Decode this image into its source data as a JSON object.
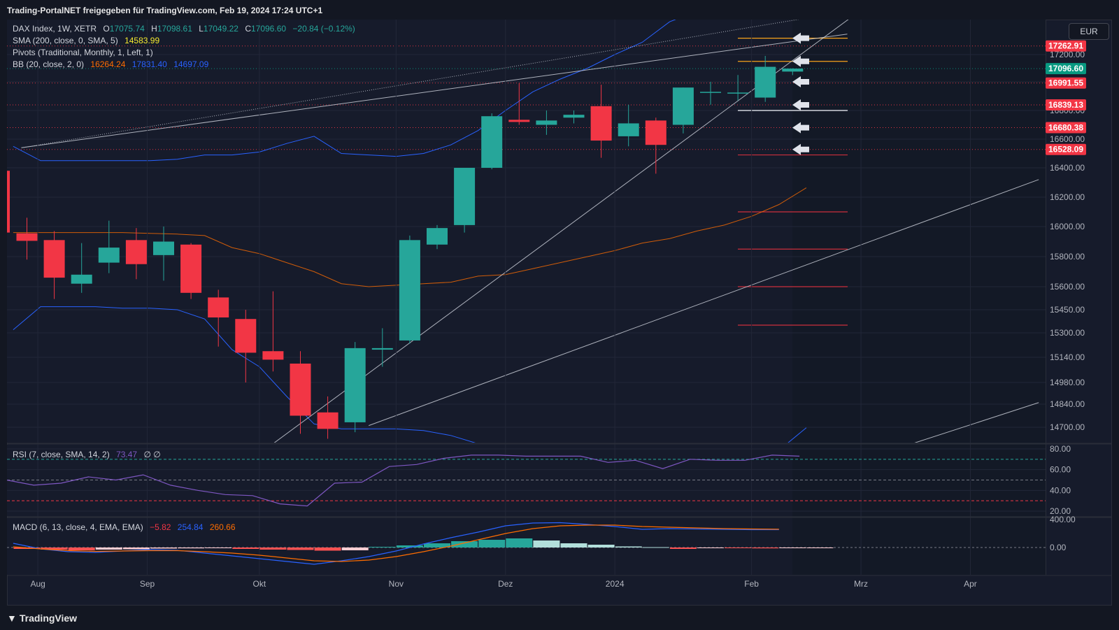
{
  "header": {
    "share_text": "Trading-PortalNET freigegeben für TradingView.com, Feb 19, 2024 17:24 UTC+1"
  },
  "footer": {
    "brand": "TradingView"
  },
  "currency": "EUR",
  "legend": {
    "instrument": "DAX Index, 1W, XETR",
    "ohlc": {
      "O": "17075.74",
      "H": "17098.61",
      "L": "17049.22",
      "C": "17096.60",
      "change": "−20.84 (−0.12%)"
    },
    "sma": {
      "label": "SMA (200, close, 0, SMA, 5)",
      "value": "14583.99"
    },
    "pivots": {
      "label": "Pivots (Traditional, Monthly, 1, Left, 1)"
    },
    "bb": {
      "label": "BB (20, close, 2, 0)",
      "basis": "16264.24",
      "upper": "17831.40",
      "lower": "14697.09"
    },
    "rsi": {
      "label": "RSI (7, close, SMA, 14, 2)",
      "value": "73.47",
      "extra": "∅ ∅"
    },
    "macd": {
      "label": "MACD (6, 13, close, 4, EMA, EMA)",
      "hist": "−5.82",
      "macd": "254.84",
      "signal": "260.66"
    }
  },
  "colors": {
    "up": "#26a69a",
    "down": "#f23645",
    "bb_band": "#2962ff",
    "bb_basis": "#ff6d00",
    "rsi_line": "#7e57c2",
    "macd_line": "#2962ff",
    "signal_line": "#ff6d00",
    "pivot_p": "#d1d4dc",
    "pivot_r": "#f7a21b",
    "pivot_s": "#cc2f3c"
  },
  "chart_data": [
    {
      "type": "candlestick",
      "title": "DAX Index, 1W, XETR",
      "x_ticks": [
        "Aug",
        "Sep",
        "Okt",
        "Nov",
        "Dez",
        "2024",
        "Feb",
        "Mrz",
        "Apr"
      ],
      "x_tick_weeks": [
        0.4,
        4.4,
        8.5,
        13.5,
        17.5,
        21.5,
        26.5,
        30.5,
        34.5
      ],
      "y_ticks": [
        17200,
        17000,
        16800,
        16600,
        16400,
        16200,
        16000,
        15800,
        15600,
        15450,
        15300,
        15140,
        14980,
        14840,
        14700
      ],
      "y_tick_labels": [
        "17200.00",
        "17000.00",
        "16800.00",
        "16600.00",
        "16400.00",
        "16200.00",
        "16000.00",
        "15800.00",
        "15600.00",
        "15450.00",
        "15300.00",
        "15140.00",
        "14980.00",
        "14840.00",
        "14700.00"
      ],
      "ohlc": [
        {
          "o": 15955,
          "h": 16060,
          "l": 15780,
          "c": 15905
        },
        {
          "o": 15910,
          "h": 15970,
          "l": 15520,
          "c": 15660
        },
        {
          "o": 15620,
          "h": 15890,
          "l": 15560,
          "c": 15680
        },
        {
          "o": 15760,
          "h": 16040,
          "l": 15690,
          "c": 15860
        },
        {
          "o": 15910,
          "h": 15990,
          "l": 15650,
          "c": 15750
        },
        {
          "o": 15810,
          "h": 16000,
          "l": 15640,
          "c": 15900
        },
        {
          "o": 15880,
          "h": 15890,
          "l": 15520,
          "c": 15560
        },
        {
          "o": 15530,
          "h": 15580,
          "l": 15210,
          "c": 15400
        },
        {
          "o": 15390,
          "h": 15450,
          "l": 14980,
          "c": 15170
        },
        {
          "o": 15180,
          "h": 15570,
          "l": 15050,
          "c": 15125
        },
        {
          "o": 15100,
          "h": 15180,
          "l": 14660,
          "c": 14770
        },
        {
          "o": 14790,
          "h": 14890,
          "l": 14630,
          "c": 14690
        },
        {
          "o": 14730,
          "h": 15240,
          "l": 14670,
          "c": 15200
        },
        {
          "o": 15190,
          "h": 15330,
          "l": 15080,
          "c": 15200
        },
        {
          "o": 15250,
          "h": 15940,
          "l": 15230,
          "c": 15910
        },
        {
          "o": 15880,
          "h": 16010,
          "l": 15850,
          "c": 15990
        },
        {
          "o": 16010,
          "h": 16400,
          "l": 15960,
          "c": 16400
        },
        {
          "o": 16400,
          "h": 16780,
          "l": 16390,
          "c": 16760
        },
        {
          "o": 16735,
          "h": 16990,
          "l": 16700,
          "c": 16720
        },
        {
          "o": 16700,
          "h": 16800,
          "l": 16630,
          "c": 16730
        },
        {
          "o": 16750,
          "h": 16800,
          "l": 16710,
          "c": 16770
        },
        {
          "o": 16830,
          "h": 16980,
          "l": 16470,
          "c": 16590
        },
        {
          "o": 16620,
          "h": 16840,
          "l": 16550,
          "c": 16710
        },
        {
          "o": 16730,
          "h": 16750,
          "l": 16360,
          "c": 16560
        },
        {
          "o": 16700,
          "h": 16960,
          "l": 16640,
          "c": 16960
        },
        {
          "o": 16930,
          "h": 17000,
          "l": 16840,
          "c": 16930
        },
        {
          "o": 16920,
          "h": 17050,
          "l": 16870,
          "c": 16925
        },
        {
          "o": 16890,
          "h": 17190,
          "l": 16860,
          "c": 17110
        },
        {
          "o": 17075,
          "h": 17099,
          "l": 17049,
          "c": 17097
        }
      ],
      "price_labels": [
        {
          "value": "17262.91",
          "price": 17262.91,
          "color": "#f23645"
        },
        {
          "value": "17096.60",
          "price": 17096.6,
          "color": "#089981"
        },
        {
          "value": "16991.55",
          "price": 16991.55,
          "color": "#f23645"
        },
        {
          "value": "16839.13",
          "price": 16839.13,
          "color": "#f23645"
        },
        {
          "value": "16680.38",
          "price": 16680.38,
          "color": "#f23645"
        },
        {
          "value": "16528.09",
          "price": 16528.09,
          "color": "#f23645"
        }
      ],
      "pivot_levels": [
        {
          "price": 17320,
          "kind": "R"
        },
        {
          "price": 17150,
          "kind": "R"
        },
        {
          "price": 16800,
          "kind": "P"
        },
        {
          "price": 16490,
          "kind": "S"
        },
        {
          "price": 16100,
          "kind": "S"
        },
        {
          "price": 15850,
          "kind": "S"
        },
        {
          "price": 15600,
          "kind": "S"
        },
        {
          "price": 15350,
          "kind": "S"
        }
      ],
      "arrow_prices": [
        17320,
        17150,
        17000,
        16839,
        16680,
        16528
      ],
      "bb_basis": [
        15960,
        15960,
        15960,
        15960,
        15960,
        15955,
        15950,
        15940,
        15860,
        15820,
        15760,
        15700,
        15620,
        15600,
        15610,
        15620,
        15630,
        15670,
        15680,
        15720,
        15760,
        15800,
        15840,
        15890,
        15920,
        15970,
        16010,
        16070,
        16150,
        16264
      ],
      "bb_upper": [
        16550,
        16450,
        16450,
        16450,
        16450,
        16450,
        16460,
        16490,
        16490,
        16510,
        16570,
        16620,
        16500,
        16490,
        16480,
        16500,
        16560,
        16660,
        16800,
        16930,
        17020,
        17100,
        17200,
        17290,
        17440,
        17520,
        17650,
        17800,
        17870,
        17831
      ],
      "bb_lower": [
        15320,
        15470,
        15470,
        15470,
        15460,
        15460,
        15450,
        15390,
        15190,
        15080,
        14890,
        14720,
        14690,
        14690,
        14690,
        14680,
        14650,
        14600,
        14570,
        14500,
        14460,
        14420,
        14400,
        14370,
        14330,
        14300,
        14360,
        14420,
        14560,
        14697
      ],
      "trendlines": [
        {
          "w1": -0.2,
          "p1": 16540,
          "w2": 30.0,
          "p2": 17350,
          "style": "solid"
        },
        {
          "w1": -0.2,
          "p1": 16540,
          "w2": 31.0,
          "p2": 17550,
          "style": "dotted"
        },
        {
          "w1": 9.0,
          "p1": 14600,
          "w2": 31.0,
          "p2": 17600,
          "style": "solid"
        },
        {
          "w1": 12.5,
          "p1": 14710,
          "w2": 37.0,
          "p2": 16320,
          "style": "solid"
        },
        {
          "w1": 32.0,
          "p1": 14580,
          "w2": 37.0,
          "p2": 14850,
          "style": "solid"
        }
      ]
    },
    {
      "type": "line",
      "title": "RSI (7, close, SMA, 14, 2)",
      "y_ticks": [
        80,
        60,
        40,
        20
      ],
      "y_tick_labels": [
        "80.00",
        "60.00",
        "40.00",
        "20.00"
      ],
      "levels": [
        70,
        50,
        30
      ],
      "values": [
        52,
        50,
        45,
        47,
        53,
        50,
        55,
        45,
        40,
        36,
        35,
        27,
        25,
        47,
        48,
        63,
        65,
        71,
        74,
        74,
        73,
        73,
        73,
        67,
        69,
        61,
        70,
        69,
        69,
        74,
        73
      ]
    },
    {
      "type": "bar",
      "title": "MACD (6, 13, close, 4, EMA, EMA)",
      "y_ticks": [
        400,
        0
      ],
      "y_tick_labels": [
        "400.00",
        "0.00"
      ],
      "hist": [
        -20,
        -30,
        -40,
        -30,
        -25,
        -15,
        -12,
        -10,
        -20,
        -30,
        -35,
        -45,
        -40,
        10,
        30,
        60,
        90,
        110,
        130,
        100,
        60,
        40,
        15,
        5,
        -20,
        -5,
        -8,
        -12,
        -6,
        -5
      ],
      "macd": [
        60,
        -20,
        -60,
        -70,
        -50,
        -30,
        -40,
        -80,
        -120,
        -160,
        -200,
        -240,
        -190,
        -130,
        -50,
        50,
        140,
        220,
        310,
        350,
        355,
        330,
        300,
        260,
        270,
        265,
        260,
        255,
        255
      ],
      "signal": [
        10,
        -20,
        -45,
        -55,
        -50,
        -45,
        -45,
        -60,
        -80,
        -110,
        -150,
        -190,
        -200,
        -180,
        -130,
        -60,
        20,
        110,
        200,
        270,
        310,
        320,
        320,
        300,
        290,
        280,
        270,
        265,
        261
      ]
    }
  ]
}
